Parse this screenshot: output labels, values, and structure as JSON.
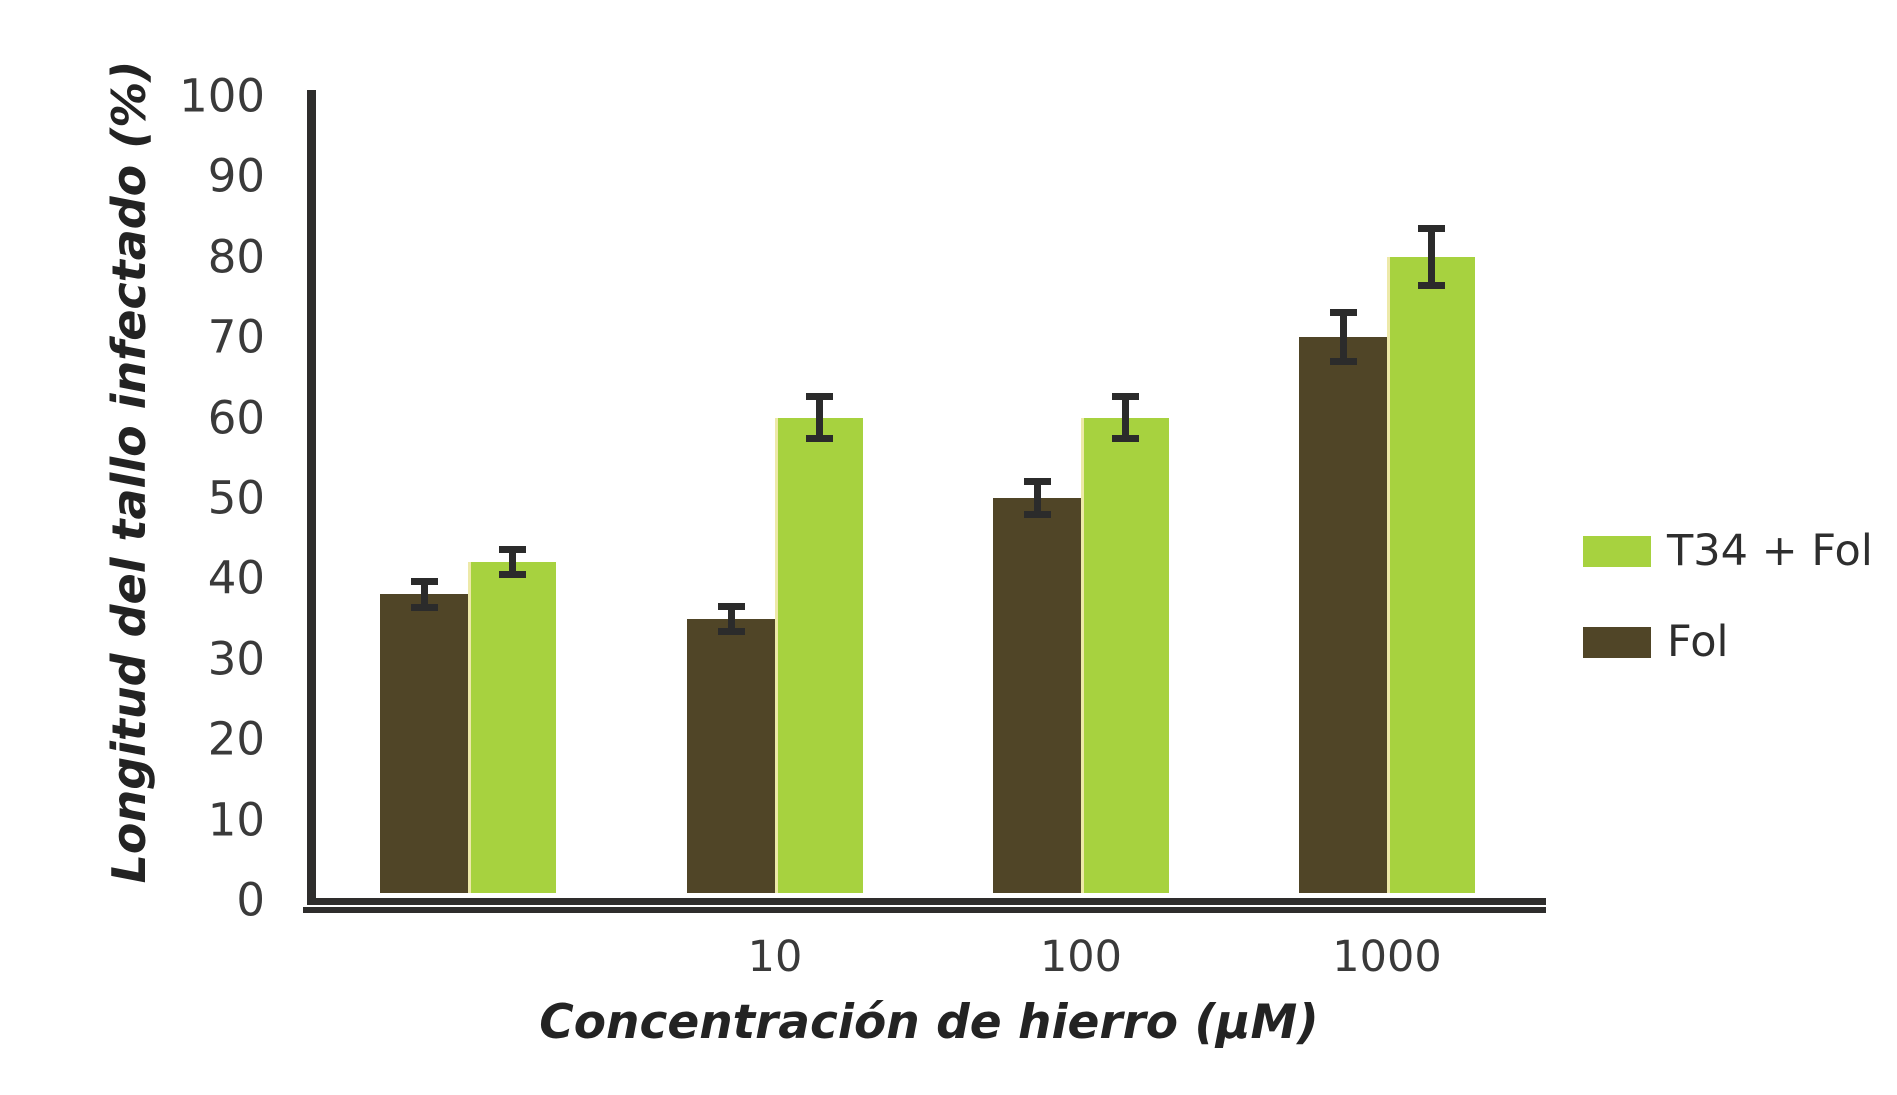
{
  "chart_data": {
    "type": "bar",
    "title": "",
    "categories": [
      "",
      "10",
      "100",
      "1000"
    ],
    "series": [
      {
        "name": "Fol",
        "color": "#504527",
        "values": [
          38,
          35,
          50,
          70
        ],
        "error_bars": [
          2,
          2,
          2.5,
          3.5
        ]
      },
      {
        "name": "T34 + Fol",
        "color": "#a7d23f",
        "values": [
          42,
          60,
          60,
          80
        ],
        "error_bars": [
          2,
          3,
          3,
          4
        ]
      }
    ],
    "xlabel": "Concentración de hierro (µM)",
    "ylabel": "Longitud del tallo infectado (%)",
    "ylim": [
      0,
      100
    ],
    "yticks": [
      0,
      10,
      20,
      30,
      40,
      50,
      60,
      70,
      80,
      90,
      100
    ],
    "grid": false,
    "legend_position": "right",
    "legend": [
      {
        "label": "T34 + Fol",
        "color": "#a7d23f"
      },
      {
        "label": "Fol",
        "color": "#504527"
      }
    ],
    "error_bar_color": "#2b2b2b",
    "axis_color": "#2e2d2c",
    "tick_label_color": "#3a3a3a",
    "t34_bar_edge_color": "#ede9a8"
  }
}
